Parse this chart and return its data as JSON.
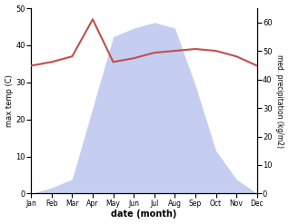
{
  "months": [
    "Jan",
    "Feb",
    "Mar",
    "Apr",
    "May",
    "Jun",
    "Jul",
    "Aug",
    "Sep",
    "Oct",
    "Nov",
    "Dec"
  ],
  "temperature": [
    34.5,
    35.5,
    37.0,
    47.0,
    35.5,
    36.5,
    38.0,
    38.5,
    39.0,
    38.5,
    37.0,
    34.5
  ],
  "precipitation": [
    0,
    2,
    5,
    30,
    55,
    58,
    60,
    58,
    38,
    15,
    5,
    0
  ],
  "temp_color": "#c0504d",
  "precip_fill_color": "#c5cef0",
  "temp_ylim": [
    0,
    50
  ],
  "precip_ylim": [
    0,
    65
  ],
  "temp_yticks": [
    0,
    10,
    20,
    30,
    40,
    50
  ],
  "precip_yticks": [
    0,
    10,
    20,
    30,
    40,
    50,
    60
  ],
  "xlabel": "date (month)",
  "ylabel_left": "max temp (C)",
  "ylabel_right": "med. precipitation (kg/m2)"
}
